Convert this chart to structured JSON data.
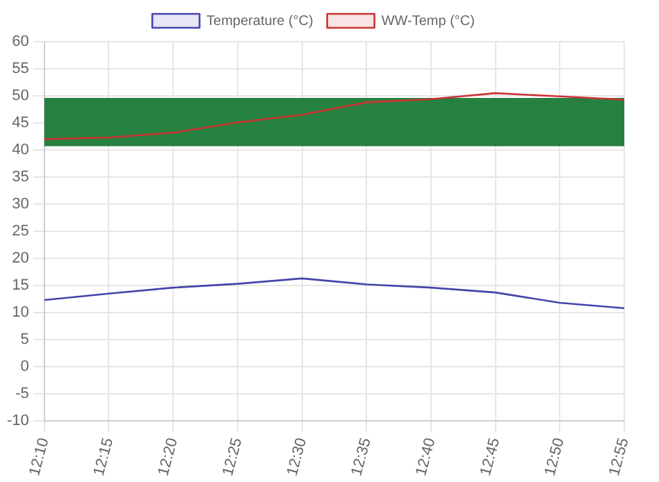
{
  "chart_data": {
    "type": "line",
    "categories": [
      "12:10",
      "12:15",
      "12:20",
      "12:25",
      "12:30",
      "12:35",
      "12:40",
      "12:45",
      "12:50",
      "12:55"
    ],
    "series": [
      {
        "name": "Temperature (°C)",
        "color": "#4444aa",
        "values": [
          12.3,
          13.5,
          14.6,
          15.3,
          16.3,
          15.2,
          14.6,
          13.7,
          11.8,
          10.8
        ]
      },
      {
        "name": "WW-Temp (°C)",
        "color": "#cc3333",
        "values": [
          42,
          42.3,
          43.2,
          45.1,
          46.5,
          48.8,
          49.4,
          50.5,
          49.9,
          49.3
        ]
      }
    ],
    "ylim": [
      -10,
      60
    ],
    "yticks": [
      -10,
      -5,
      0,
      5,
      10,
      15,
      20,
      25,
      30,
      35,
      40,
      45,
      50,
      55,
      60
    ],
    "bands": [
      {
        "axis": "y",
        "from": 40.7,
        "to": 49.6,
        "color": "#268040"
      }
    ],
    "grid": true,
    "legend": "top",
    "marker": "none",
    "line_style": "solid"
  }
}
